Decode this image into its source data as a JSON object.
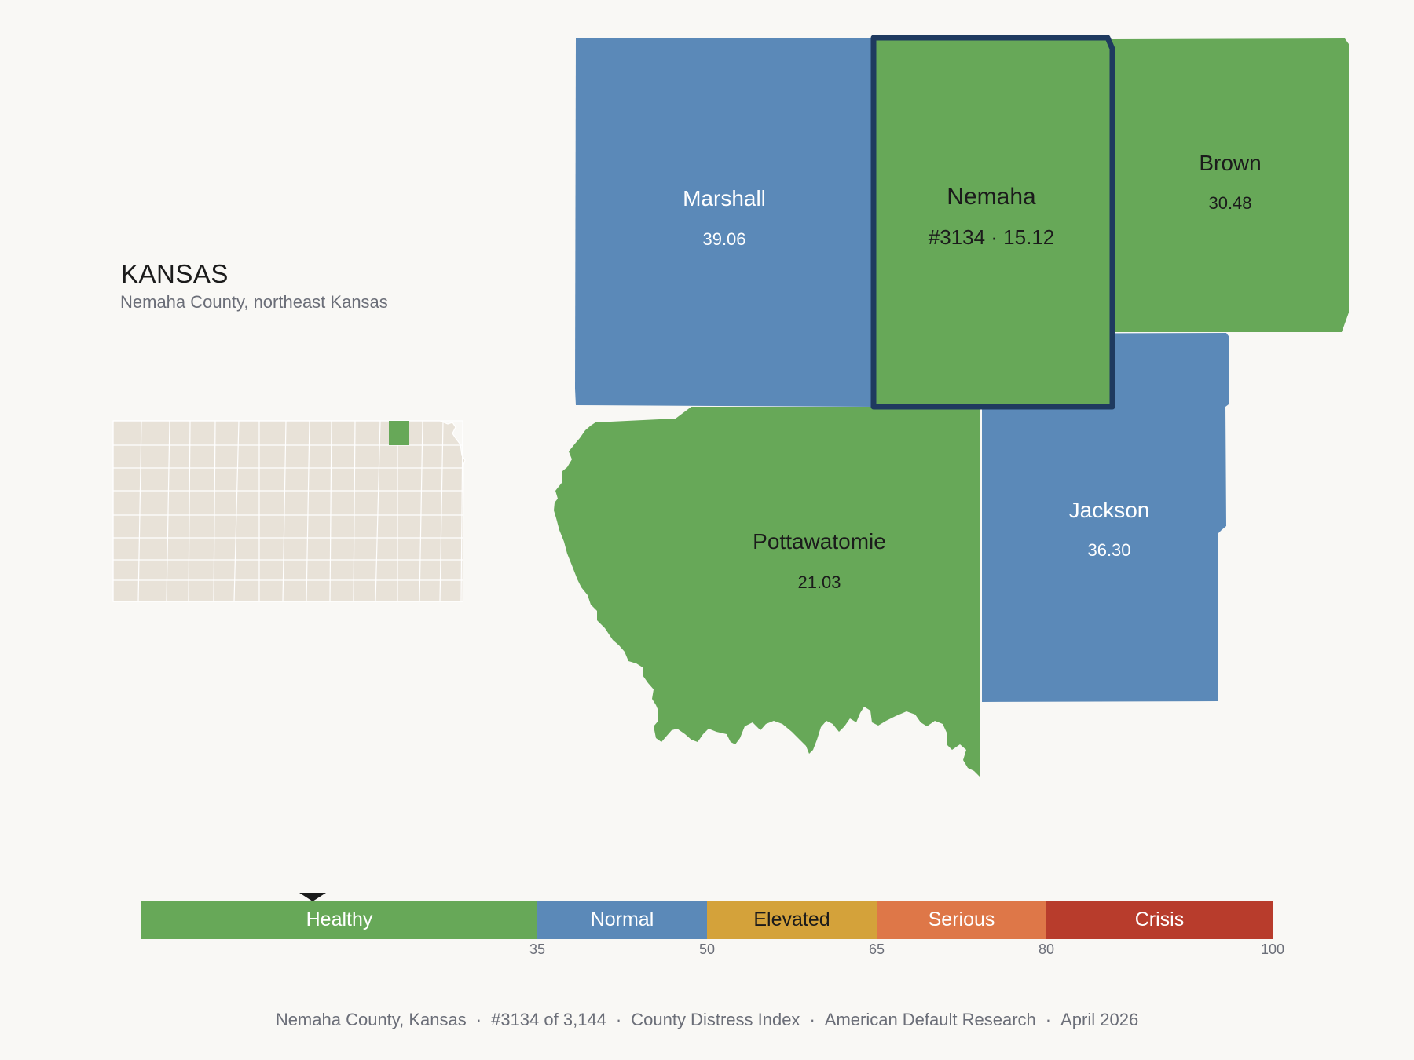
{
  "header": {
    "state": "KANSAS",
    "subtitle": "Nemaha County, northeast Kansas"
  },
  "counties": {
    "marshall": {
      "name": "Marshall",
      "value": "39.06",
      "category": "Normal"
    },
    "nemaha": {
      "name": "Nemaha",
      "value": "#3134 · 15.12",
      "category": "Healthy",
      "selected": true
    },
    "brown": {
      "name": "Brown",
      "value": "30.48",
      "category": "Healthy"
    },
    "pottawatomie": {
      "name": "Pottawatomie",
      "value": "21.03",
      "category": "Healthy"
    },
    "jackson": {
      "name": "Jackson",
      "value": "36.30",
      "category": "Normal"
    }
  },
  "locator": {
    "highlighted_county": "Nemaha",
    "base_color": "#e8e2d8",
    "highlight_color": "#67a858"
  },
  "legend": {
    "segments": [
      {
        "label": "Healthy",
        "from": 0,
        "to": 35,
        "color": "#67a858"
      },
      {
        "label": "Normal",
        "from": 35,
        "to": 50,
        "color": "#5b89b8"
      },
      {
        "label": "Elevated",
        "from": 50,
        "to": 65,
        "color": "#d4a23a"
      },
      {
        "label": "Serious",
        "from": 65,
        "to": 80,
        "color": "#de7748"
      },
      {
        "label": "Crisis",
        "from": 80,
        "to": 100,
        "color": "#b83c2c"
      }
    ],
    "ticks": [
      "35",
      "50",
      "65",
      "80",
      "100"
    ],
    "marker_value": 15.12
  },
  "colors": {
    "healthy": "#67a858",
    "normal": "#5b89b8",
    "selected_border": "#1f3a5f"
  },
  "footer": {
    "county": "Nemaha County, Kansas",
    "rank": "#3134 of 3,144",
    "index": "County Distress Index",
    "source": "American Default Research",
    "date": "April 2026"
  }
}
